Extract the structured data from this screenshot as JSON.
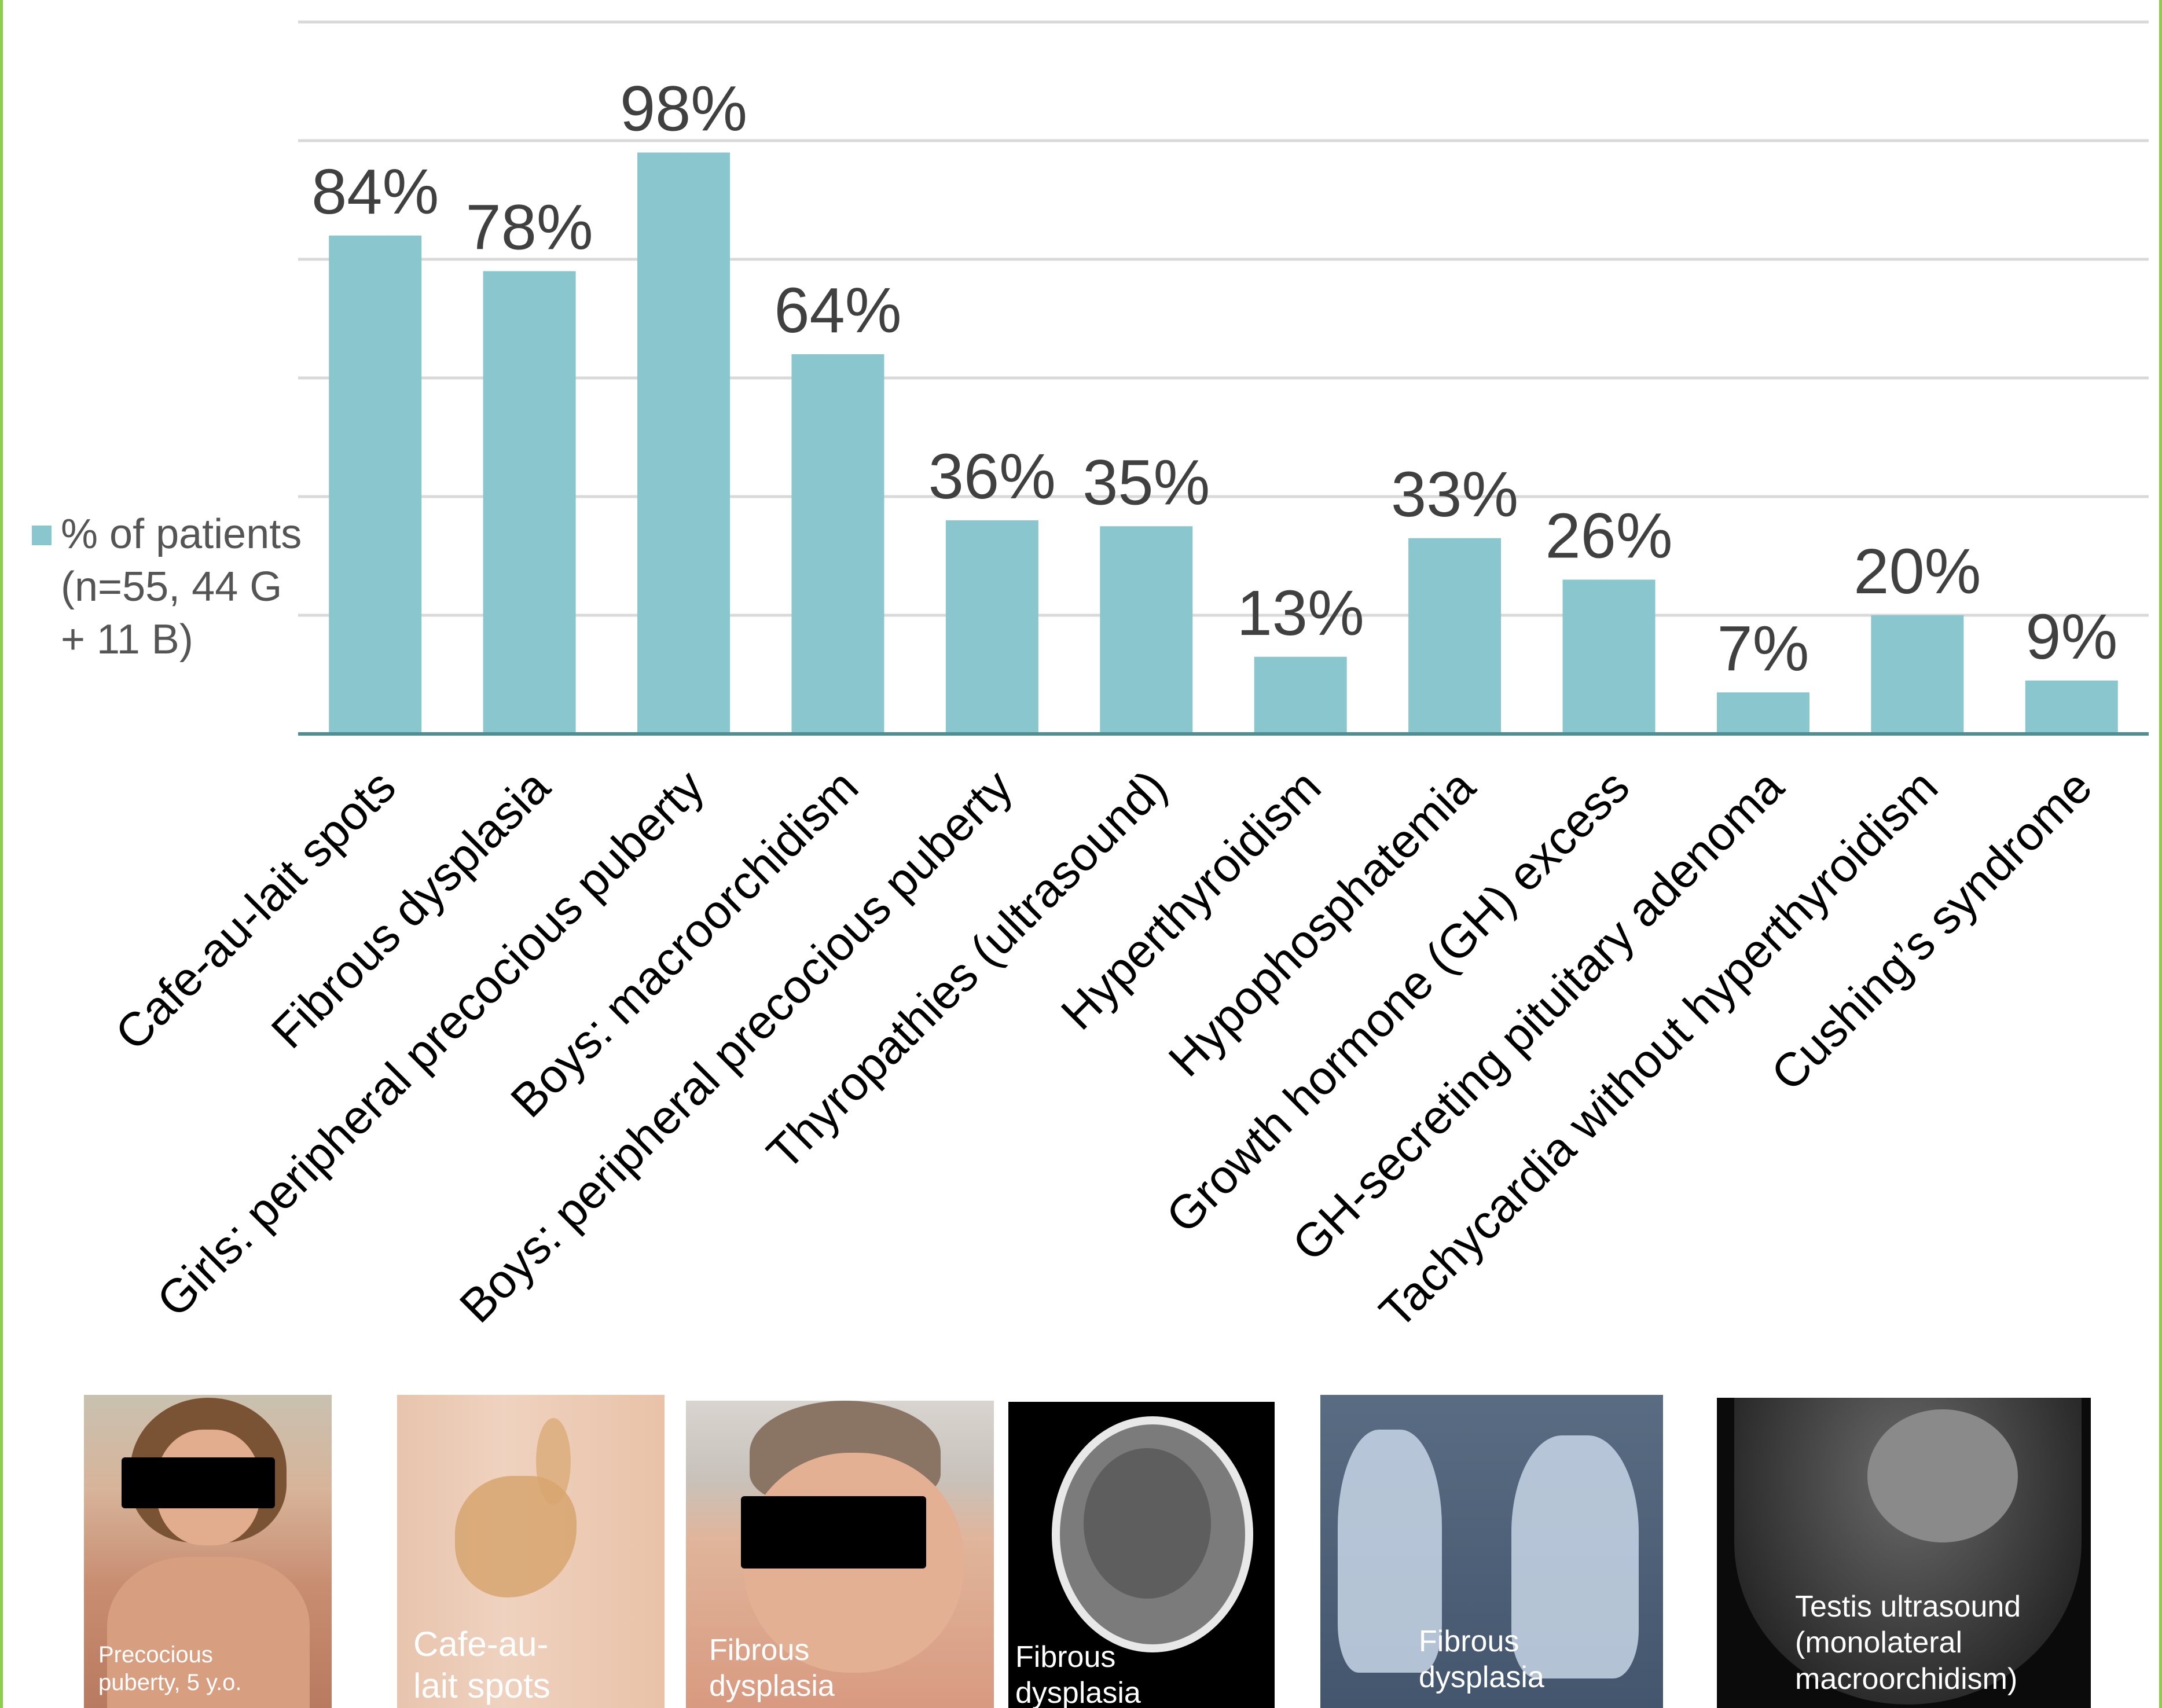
{
  "chart_data": {
    "type": "bar",
    "categories": [
      "Cafe-au-lait spots",
      "Fibrous dysplasia",
      "Girls: peripheral precocious puberty",
      "Boys: macroorchidism",
      "Boys: peripheral precocious puberty",
      "Thyropathies (ultrasound)",
      "Hyperthyroidism",
      "Hypophosphatemia",
      "Growth hormone (GH) excess",
      "GH-secreting pituitary adenoma",
      "Tachycardia without hyperthyroidism",
      "Cushing’s syndrome"
    ],
    "series": [
      {
        "name": "% of patients (n=55, 44 G + 11 B)",
        "values": [
          84,
          78,
          98,
          64,
          36,
          35,
          13,
          33,
          26,
          7,
          20,
          9
        ]
      }
    ],
    "data_labels": [
      "84%",
      "78%",
      "98%",
      "64%",
      "36%",
      "35%",
      "13%",
      "33%",
      "26%",
      "7%",
      "20%",
      "9%"
    ],
    "ylim": [
      0,
      120
    ],
    "grid": true,
    "legend_position": "left",
    "colors": {
      "bar": "#8ac6ce",
      "grid": "#d9d9d9",
      "axis": "#4e8f96",
      "label": "#404040"
    }
  },
  "legend": {
    "label": "% of patients (n=55, 44 G + 11 B)"
  },
  "photos": [
    {
      "name": "precocious-puberty-photo",
      "caption": "Precocious puberty, 5 y.o."
    },
    {
      "name": "cafe-au-lait-photo",
      "caption": "Cafe-au-lait spots"
    },
    {
      "name": "fibrous-dysplasia-face-photo",
      "caption": "Fibrous dysplasia"
    },
    {
      "name": "fibrous-dysplasia-ct-scan",
      "caption": "Fibrous dysplasia"
    },
    {
      "name": "fibrous-dysplasia-hand-xray",
      "caption": "Fibrous dysplasia"
    },
    {
      "name": "testis-ultrasound-image",
      "caption": "Testis ultrasound (monolateral macroorchidism)"
    }
  ]
}
